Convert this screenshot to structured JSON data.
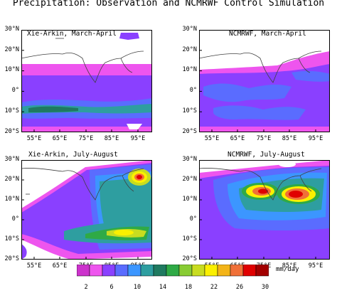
{
  "figure": {
    "title": "Precipitation: Observation and NCMRWF Control Simulation",
    "y_labels": [
      "30°N",
      "20°N",
      "10°N",
      "0°",
      "10°S",
      "20°S"
    ],
    "x_labels": [
      "55°E",
      "65°E",
      "75°E",
      "85°E",
      "95°E"
    ]
  },
  "panels": [
    {
      "title": "Xie-Arkin, March-April"
    },
    {
      "title": "NCMRWF, March-April"
    },
    {
      "title": "Xie-Arkin, July-August"
    },
    {
      "title": "NCMRWF, July-August"
    }
  ],
  "colorbar": {
    "ticks": [
      "2",
      "6",
      "10",
      "14",
      "18",
      "22",
      "26",
      "30"
    ],
    "units": "mm/day",
    "colors": [
      "#cc33cc",
      "#ee55ee",
      "#8a40ff",
      "#5a6cff",
      "#3c96ff",
      "#2e9ea0",
      "#1f7a60",
      "#2faa46",
      "#88cc33",
      "#c8dc20",
      "#fbf000",
      "#f3b418",
      "#f07038",
      "#e00000",
      "#a30000"
    ]
  }
}
